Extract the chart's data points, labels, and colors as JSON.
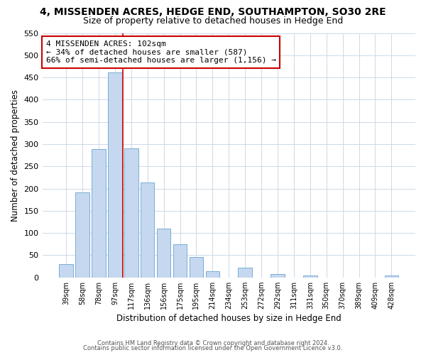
{
  "title": "4, MISSENDEN ACRES, HEDGE END, SOUTHAMPTON, SO30 2RE",
  "subtitle": "Size of property relative to detached houses in Hedge End",
  "xlabel": "Distribution of detached houses by size in Hedge End",
  "ylabel": "Number of detached properties",
  "bar_labels": [
    "39sqm",
    "58sqm",
    "78sqm",
    "97sqm",
    "117sqm",
    "136sqm",
    "156sqm",
    "175sqm",
    "195sqm",
    "214sqm",
    "234sqm",
    "253sqm",
    "272sqm",
    "292sqm",
    "311sqm",
    "331sqm",
    "350sqm",
    "370sqm",
    "389sqm",
    "409sqm",
    "428sqm"
  ],
  "bar_values": [
    30,
    192,
    288,
    462,
    291,
    213,
    110,
    74,
    46,
    14,
    0,
    22,
    0,
    8,
    0,
    5,
    0,
    0,
    0,
    0,
    5
  ],
  "bar_color": "#c5d8ef",
  "bar_edge_color": "#7aadd4",
  "vline_x_idx": 3.5,
  "vline_color": "#cc0000",
  "annotation_title": "4 MISSENDEN ACRES: 102sqm",
  "annotation_line1": "← 34% of detached houses are smaller (587)",
  "annotation_line2": "66% of semi-detached houses are larger (1,156) →",
  "annotation_box_color": "#ffffff",
  "annotation_box_edge_color": "#cc0000",
  "ylim": [
    0,
    550
  ],
  "yticks": [
    0,
    50,
    100,
    150,
    200,
    250,
    300,
    350,
    400,
    450,
    500,
    550
  ],
  "footer1": "Contains HM Land Registry data © Crown copyright and database right 2024.",
  "footer2": "Contains public sector information licensed under the Open Government Licence v3.0.",
  "bg_color": "#ffffff",
  "grid_color": "#ccd9e8"
}
